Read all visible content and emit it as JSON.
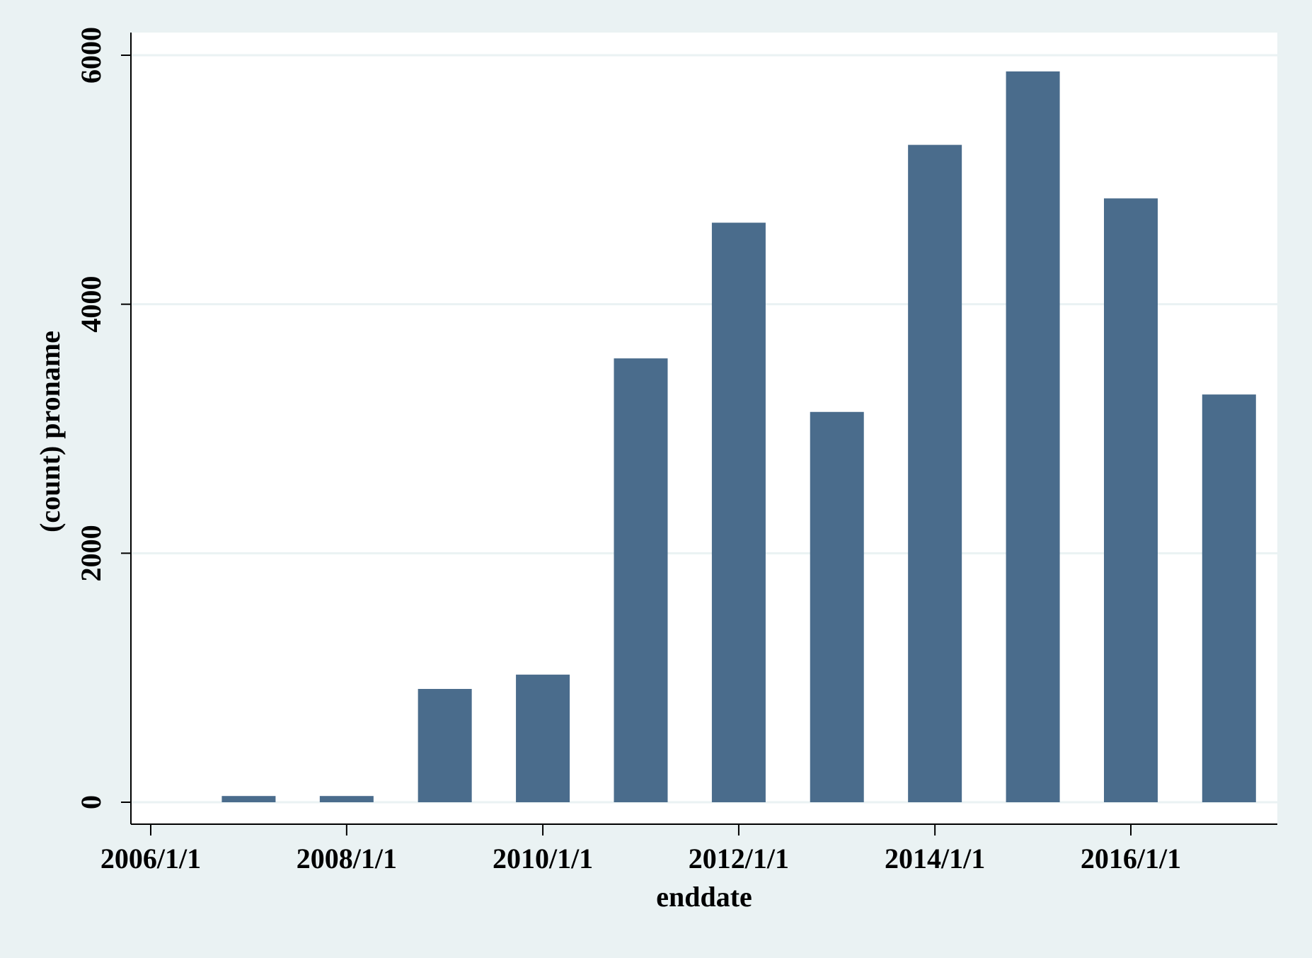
{
  "chart_data": {
    "type": "bar",
    "x": [
      "2007/1/1",
      "2008/1/1",
      "2009/1/1",
      "2010/1/1",
      "2011/1/1",
      "2012/1/1",
      "2013/1/1",
      "2014/1/1",
      "2015/1/1",
      "2016/1/1",
      "2017/1/1"
    ],
    "values": [
      50,
      50,
      910,
      1025,
      3565,
      4655,
      3135,
      5280,
      5870,
      4850,
      3275
    ],
    "xlabel": "enddate",
    "ylabel": "(count) proname",
    "xticks": [
      "2006/1/1",
      "2008/1/1",
      "2010/1/1",
      "2012/1/1",
      "2014/1/1",
      "2016/1/1"
    ],
    "yticks": [
      "0",
      "2000",
      "4000",
      "6000"
    ],
    "ylim": [
      0,
      6000
    ],
    "grid": true,
    "colors": {
      "bar": "#4a6c8c",
      "plot_background": "#ffffff",
      "outer_background": "#eaf2f3",
      "gridline": "#eaf2f3"
    }
  }
}
